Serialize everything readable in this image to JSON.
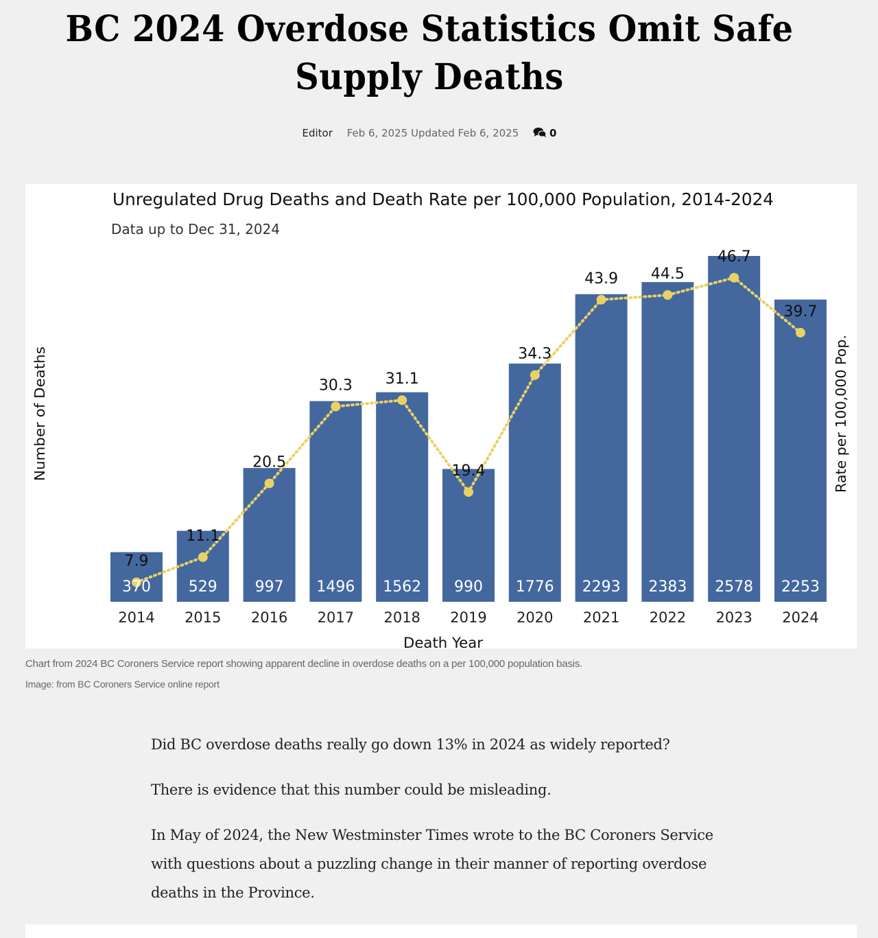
{
  "article": {
    "headline": "BC 2024 Overdose Statistics Omit Safe Supply Deaths",
    "author": "Editor",
    "published": "Feb 6, 2025",
    "updated": "Updated Feb 6, 2025",
    "comment_icon": "comments-icon",
    "comment_count": "0",
    "caption": "Chart from 2024 BC Coroners Service report showing apparent decline in overdose deaths on a per 100,000 population basis.",
    "credit": "Image: from BC Coroners Service online report",
    "paragraphs": [
      "Did BC overdose deaths really go down 13% in 2024 as widely reported?",
      "There is evidence that this number could be misleading.",
      "In May of 2024, the New Westminster Times wrote to the BC Coroners Service with questions about a puzzling change in their manner of reporting overdose deaths in the Province."
    ]
  },
  "chart_data": {
    "type": "bar",
    "title": "Unregulated Drug Deaths and Death Rate per 100,000 Population, 2014-2024",
    "subtitle": "Data up to Dec 31, 2024",
    "xlabel": "Death Year",
    "ylabel": "Number of Deaths",
    "y2label": "Rate per 100,000 Pop.",
    "categories": [
      "2014",
      "2015",
      "2016",
      "2017",
      "2018",
      "2019",
      "2020",
      "2021",
      "2022",
      "2023",
      "2024"
    ],
    "series": [
      {
        "name": "Number of Deaths",
        "type": "bar",
        "axis": "left",
        "color": "#44679e",
        "values": [
          370,
          529,
          997,
          1496,
          1562,
          990,
          1776,
          2293,
          2383,
          2578,
          2253
        ]
      },
      {
        "name": "Rate per 100,000 Pop.",
        "type": "line",
        "style": "dotted",
        "axis": "right",
        "color": "#e8d265",
        "values": [
          7.9,
          11.1,
          20.5,
          30.3,
          31.1,
          19.4,
          34.3,
          43.9,
          44.5,
          46.7,
          39.7
        ]
      }
    ],
    "ylim": [
      0,
      2600
    ],
    "y2lim": [
      0,
      48
    ],
    "grid": false,
    "axis_ticks_visible": false,
    "legend": "none"
  }
}
